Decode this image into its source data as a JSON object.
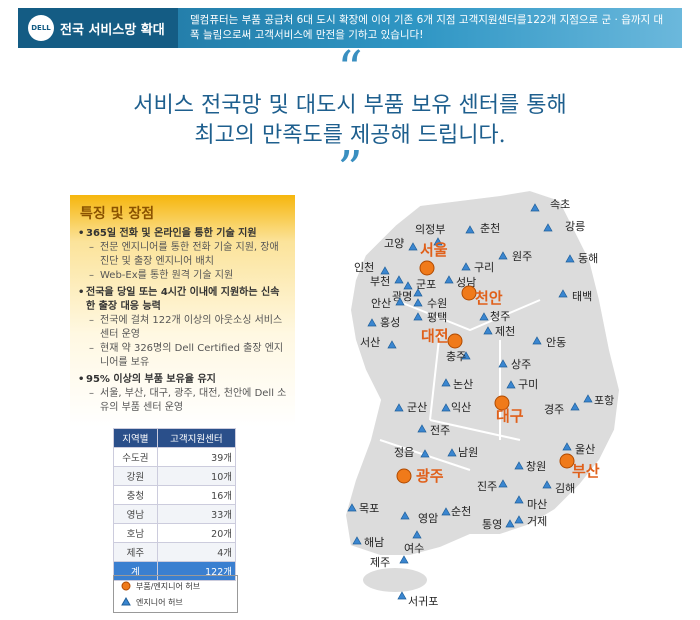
{
  "header": {
    "logo": "DELL",
    "title": "전국 서비스망 확대",
    "description": "델컴퓨터는 부품 공급처 6대 도시 확장에 이어 기존 6개 지점 고객지원센터를122개 지점으로 군 · 읍까지 대폭 늘림으로써 고객서비스에 만전을 기하고 있습니다!"
  },
  "quote": {
    "lines": [
      "서비스 전국망 및 대도시 부품 보유 센터를 통해",
      "최고의 만족도를 제공해 드립니다."
    ]
  },
  "features": {
    "title": "특징 및 장점",
    "items": [
      {
        "text": "365일 전화 및 온라인을 통한 기술 지원",
        "subs": [
          "전문 엔지니어를 통한 전화 기술 지원, 장애 진단 및 출장 엔지니어 배치",
          "Web-Ex를 통한 원격 기술 지원"
        ]
      },
      {
        "text": "전국을 당일 또는 4시간 이내에 지원하는 신속한 출장 대응 능력",
        "subs": [
          "전국에 걸쳐 122개 이상의 아웃소싱 서비스 센터 운영",
          "현재 약 326명의 Dell Certified 출장 엔지니어를 보유"
        ]
      },
      {
        "text": "95% 이상의 부품 보유율 유지",
        "subs": [
          "서울, 부산, 대구, 광주, 대전, 천안에 Dell 소유의 부품 센터 운영"
        ]
      }
    ]
  },
  "table": {
    "header": [
      "지역별",
      "고객지원센터"
    ],
    "rows": [
      [
        "수도권",
        "39개"
      ],
      [
        "강원",
        "10개"
      ],
      [
        "충청",
        "16개"
      ],
      [
        "영남",
        "33개"
      ],
      [
        "호남",
        "20개"
      ],
      [
        "제주",
        "4개"
      ],
      [
        "계",
        "122개"
      ]
    ]
  },
  "legend": {
    "hub": "부품/엔지니어 허브",
    "engineer": "엔지니어 허브"
  },
  "map": {
    "cities": [
      {
        "label": "속초",
        "type": "engineer"
      },
      {
        "label": "강릉",
        "type": "engineer"
      },
      {
        "label": "의정부",
        "type": "engineer"
      },
      {
        "label": "춘천",
        "type": "engineer"
      },
      {
        "label": "고양",
        "type": "engineer"
      },
      {
        "label": "서울",
        "type": "hub"
      },
      {
        "label": "인천",
        "type": "engineer"
      },
      {
        "label": "구리",
        "type": "engineer"
      },
      {
        "label": "원주",
        "type": "engineer"
      },
      {
        "label": "동해",
        "type": "engineer"
      },
      {
        "label": "부천",
        "type": "engineer"
      },
      {
        "label": "군포",
        "type": "engineer"
      },
      {
        "label": "성남",
        "type": "engineer"
      },
      {
        "label": "광명",
        "type": "engineer"
      },
      {
        "label": "천안",
        "type": "hub"
      },
      {
        "label": "태백",
        "type": "engineer"
      },
      {
        "label": "안산",
        "type": "engineer"
      },
      {
        "label": "수원",
        "type": "engineer"
      },
      {
        "label": "홍성",
        "type": "engineer"
      },
      {
        "label": "평택",
        "type": "engineer"
      },
      {
        "label": "청주",
        "type": "engineer"
      },
      {
        "label": "제천",
        "type": "engineer"
      },
      {
        "label": "대전",
        "type": "hub"
      },
      {
        "label": "서산",
        "type": "engineer"
      },
      {
        "label": "안동",
        "type": "engineer"
      },
      {
        "label": "충주",
        "type": "engineer"
      },
      {
        "label": "상주",
        "type": "engineer"
      },
      {
        "label": "논산",
        "type": "engineer"
      },
      {
        "label": "구미",
        "type": "engineer"
      },
      {
        "label": "군산",
        "type": "engineer"
      },
      {
        "label": "익산",
        "type": "engineer"
      },
      {
        "label": "대구",
        "type": "hub"
      },
      {
        "label": "경주",
        "type": "engineer"
      },
      {
        "label": "포항",
        "type": "engineer"
      },
      {
        "label": "전주",
        "type": "engineer"
      },
      {
        "label": "울산",
        "type": "engineer"
      },
      {
        "label": "정읍",
        "type": "engineer"
      },
      {
        "label": "남원",
        "type": "engineer"
      },
      {
        "label": "부산",
        "type": "hub"
      },
      {
        "label": "창원",
        "type": "engineer"
      },
      {
        "label": "광주",
        "type": "hub"
      },
      {
        "label": "김해",
        "type": "engineer"
      },
      {
        "label": "진주",
        "type": "engineer"
      },
      {
        "label": "마산",
        "type": "engineer"
      },
      {
        "label": "목포",
        "type": "engineer"
      },
      {
        "label": "순천",
        "type": "engineer"
      },
      {
        "label": "영암",
        "type": "engineer"
      },
      {
        "label": "거제",
        "type": "engineer"
      },
      {
        "label": "통영",
        "type": "engineer"
      },
      {
        "label": "해남",
        "type": "engineer"
      },
      {
        "label": "여수",
        "type": "engineer"
      },
      {
        "label": "제주",
        "type": "engineer"
      },
      {
        "label": "서귀포",
        "type": "engineer"
      }
    ]
  }
}
